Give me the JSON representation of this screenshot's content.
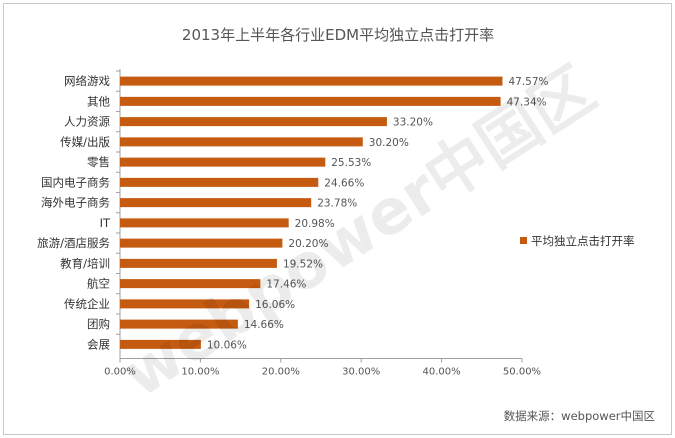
{
  "chart_data": {
    "type": "bar",
    "orientation": "horizontal",
    "title": "2013年上半年各行业EDM平均独立点击打开率",
    "categories": [
      "网络游戏",
      "其他",
      "人力资源",
      "传媒/出版",
      "零售",
      "国内电子商务",
      "海外电子商务",
      "IT",
      "旅游/酒店服务",
      "教育/培训",
      "航空",
      "传统企业",
      "团购",
      "会展"
    ],
    "series": [
      {
        "name": "平均独立点击打开率",
        "values": [
          47.57,
          47.34,
          33.2,
          30.2,
          25.53,
          24.66,
          23.78,
          20.98,
          20.2,
          19.52,
          17.46,
          16.06,
          14.66,
          10.06
        ],
        "labels": [
          "47.57%",
          "47.34%",
          "33.20%",
          "30.20%",
          "25.53%",
          "24.66%",
          "23.78%",
          "20.98%",
          "20.20%",
          "19.52%",
          "17.46%",
          "16.06%",
          "14.66%",
          "10.06%"
        ]
      }
    ],
    "xlim": [
      0,
      50
    ],
    "xticks": [
      "0.00%",
      "10.00%",
      "20.00%",
      "30.00%",
      "40.00%",
      "50.00%"
    ],
    "legend_position": "right",
    "grid": false
  },
  "source": "数据来源：webpower中国区",
  "watermark": "webpower中国区",
  "colors": {
    "bar": "#c55a11",
    "text": "#333333",
    "axis": "#a0a0a0"
  }
}
